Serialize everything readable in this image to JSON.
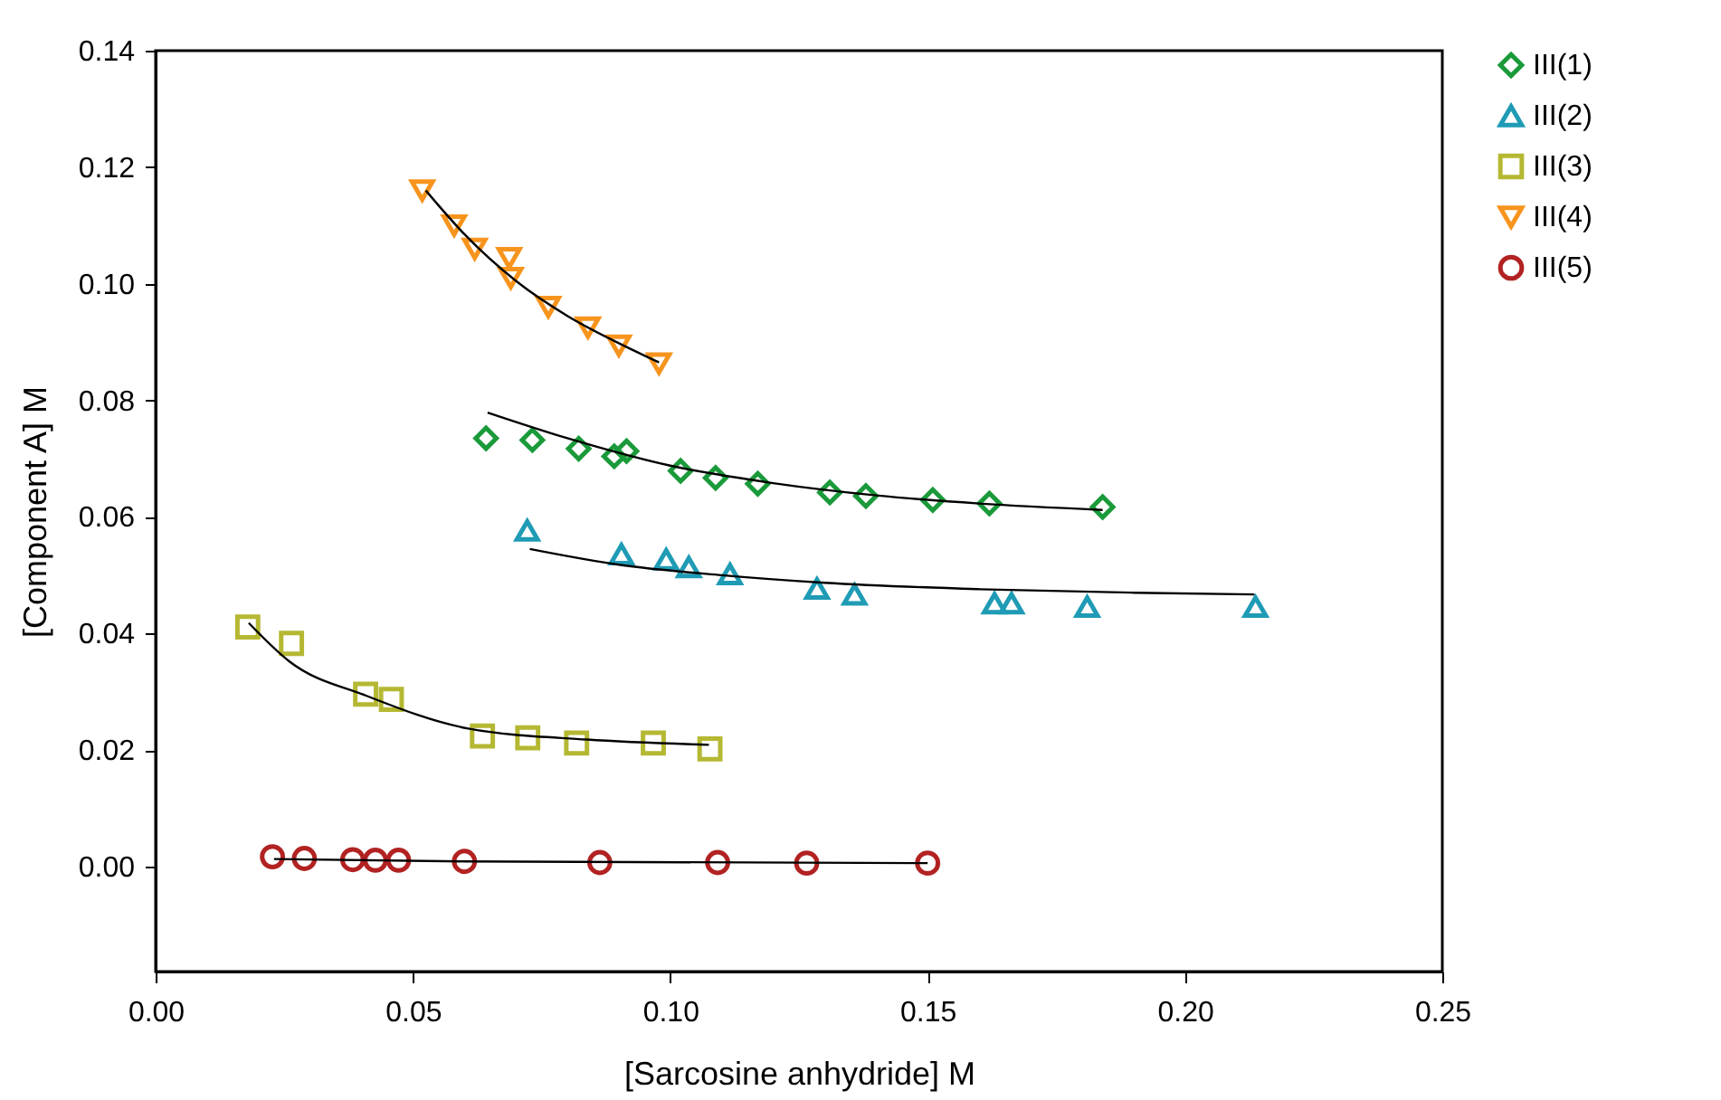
{
  "chart_data": {
    "type": "scatter",
    "xlabel": "[Sarcosine anhydride] M",
    "ylabel": "[Component A] M",
    "xlim": [
      0,
      0.25
    ],
    "ylim": [
      -0.018,
      0.14
    ],
    "xticks": [
      {
        "value": 0,
        "label": "0.00"
      },
      {
        "value": 0.05,
        "label": "0.05"
      },
      {
        "value": 0.1,
        "label": "0.10"
      },
      {
        "value": 0.15,
        "label": "0.15"
      },
      {
        "value": 0.2,
        "label": "0.20"
      },
      {
        "value": 0.25,
        "label": "0.25"
      }
    ],
    "yticks": [
      {
        "value": 0,
        "label": "0.00"
      },
      {
        "value": 0.02,
        "label": "0.02"
      },
      {
        "value": 0.04,
        "label": "0.04"
      },
      {
        "value": 0.06,
        "label": "0.06"
      },
      {
        "value": 0.08,
        "label": "0.08"
      },
      {
        "value": 0.1,
        "label": "0.10"
      },
      {
        "value": 0.12,
        "label": "0.12"
      },
      {
        "value": 0.14,
        "label": "0.14"
      }
    ],
    "grid": false,
    "legend": "top right",
    "series": [
      {
        "name": "III(1)",
        "color": "#1a9a3a",
        "marker": "diamond",
        "x": [
          0.0642,
          0.0732,
          0.0822,
          0.0891,
          0.0915,
          0.102,
          0.1088,
          0.117,
          0.131,
          0.138,
          0.151,
          0.162,
          0.184
        ],
        "values": [
          0.0735,
          0.0732,
          0.0717,
          0.0704,
          0.0713,
          0.0679,
          0.0667,
          0.0657,
          0.0642,
          0.0636,
          0.0629,
          0.0623,
          0.0617
        ]
      },
      {
        "name": "III(2)",
        "color": "#1f9bb5",
        "marker": "triangle",
        "x": [
          0.0722,
          0.0905,
          0.0992,
          0.1036,
          0.1116,
          0.1285,
          0.1358,
          0.163,
          0.1663,
          0.181,
          0.2137
        ],
        "values": [
          0.0577,
          0.0536,
          0.0527,
          0.0514,
          0.0502,
          0.0477,
          0.0467,
          0.0452,
          0.0452,
          0.0446,
          0.0446
        ]
      },
      {
        "name": "III(3)",
        "color": "#b5b832",
        "marker": "square",
        "x": [
          0.0179,
          0.0264,
          0.0408,
          0.0458,
          0.0635,
          0.0723,
          0.0818,
          0.0967,
          0.1077
        ],
        "values": [
          0.0411,
          0.0383,
          0.0296,
          0.0287,
          0.0224,
          0.0221,
          0.0212,
          0.0212,
          0.0202
        ]
      },
      {
        "name": "III(4)",
        "color": "#f7941d",
        "marker": "triangle_down",
        "x": [
          0.0518,
          0.058,
          0.062,
          0.0687,
          0.069,
          0.0763,
          0.084,
          0.09,
          0.0978
        ],
        "values": [
          0.116,
          0.11,
          0.106,
          0.1044,
          0.101,
          0.096,
          0.0925,
          0.0894,
          0.0863
        ]
      },
      {
        "name": "III(5)",
        "color": "#b22222",
        "marker": "circle",
        "x": [
          0.0227,
          0.0289,
          0.0383,
          0.0427,
          0.0472,
          0.06,
          0.0863,
          0.1092,
          0.1265,
          0.15
        ],
        "values": [
          0.0017,
          0.0014,
          0.0012,
          0.0011,
          0.0011,
          0.0009,
          0.0007,
          0.0007,
          0.0006,
          0.0006
        ]
      },
      {
        "type": "line",
        "color": "#000000",
        "line_style": "solid",
        "x": [
          0.0645,
          0.08,
          0.1,
          0.12,
          0.14,
          0.16,
          0.184
        ],
        "values": [
          0.0779,
          0.0735,
          0.0688,
          0.0658,
          0.0637,
          0.0623,
          0.0612
        ]
      },
      {
        "type": "line",
        "color": "#000000",
        "line_style": "solid",
        "x": [
          0.0727,
          0.09,
          0.11,
          0.13,
          0.16,
          0.19,
          0.2135
        ],
        "values": [
          0.0545,
          0.0518,
          0.05,
          0.0487,
          0.0476,
          0.047,
          0.0467
        ]
      },
      {
        "type": "line",
        "color": "#000000",
        "line_style": "solid",
        "x": [
          0.0181,
          0.026,
          0.041,
          0.0607,
          0.0838,
          0.1075
        ],
        "values": [
          0.0418,
          0.0352,
          0.0293,
          0.0237,
          0.0218,
          0.0209
        ]
      },
      {
        "type": "line",
        "color": "#000000",
        "line_style": "solid",
        "x": [
          0.0525,
          0.06,
          0.07,
          0.08,
          0.09,
          0.0978
        ],
        "values": [
          0.116,
          0.1085,
          0.1005,
          0.0945,
          0.0898,
          0.0865
        ]
      },
      {
        "type": "line",
        "color": "#000000",
        "line_style": "solid",
        "x": [
          0.023,
          0.06,
          0.15
        ],
        "values": [
          0.0013,
          0.0009,
          0.0006
        ]
      }
    ]
  }
}
